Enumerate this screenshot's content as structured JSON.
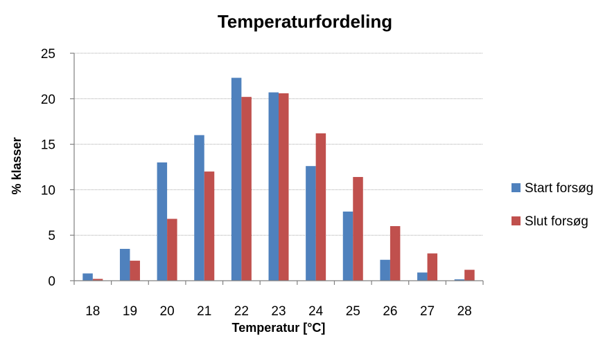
{
  "chart_data": {
    "type": "bar",
    "title": "Temperaturfordeling",
    "xlabel": "Temperatur [°C]",
    "ylabel": "% klasser",
    "categories": [
      "18",
      "19",
      "20",
      "21",
      "22",
      "23",
      "24",
      "25",
      "26",
      "27",
      "28"
    ],
    "series": [
      {
        "name": "Start forsøg",
        "color": "#4f81bd",
        "values": [
          0.8,
          3.5,
          13.0,
          16.0,
          22.3,
          20.7,
          12.6,
          7.6,
          2.3,
          0.9,
          0.15
        ]
      },
      {
        "name": "Slut forsøg",
        "color": "#c0504d",
        "values": [
          0.2,
          2.2,
          6.8,
          12.0,
          20.2,
          20.6,
          16.2,
          11.4,
          6.0,
          3.0,
          1.2
        ]
      }
    ],
    "ylim": [
      0,
      25
    ],
    "yticks": [
      "0",
      "5",
      "10",
      "15",
      "20",
      "25"
    ],
    "grid": true,
    "legend_position": "right"
  }
}
